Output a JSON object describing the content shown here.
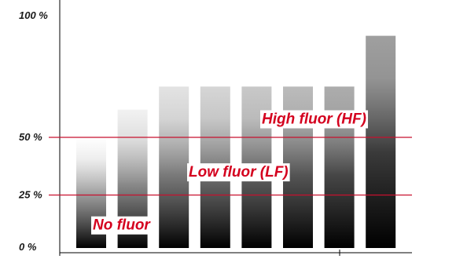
{
  "chart_data": {
    "type": "bar",
    "bar_style": "vertical gradient, dark at bottom fading upward, each successive bar darker",
    "values": [
      50,
      62,
      72,
      72,
      72,
      72,
      72,
      94
    ],
    "ylim": [
      0,
      100
    ],
    "y_ticks": [
      {
        "value": 0,
        "label": "0 %"
      },
      {
        "value": 25,
        "label": "25 %"
      },
      {
        "value": 50,
        "label": "50 %"
      },
      {
        "value": 100,
        "label": "100 %"
      }
    ],
    "reference_lines": [
      {
        "value": 25,
        "color": "#c8102e"
      },
      {
        "value": 50,
        "color": "#c8102e"
      }
    ],
    "annotations": [
      {
        "text": "No fluor",
        "y": 12
      },
      {
        "text": "Low fluor (LF)",
        "y": 35
      },
      {
        "text": "High fluor (HF)",
        "y": 58
      }
    ],
    "colors": {
      "accent": "#c8102e",
      "label_text": "#d4001e",
      "axis": "#000000"
    }
  }
}
